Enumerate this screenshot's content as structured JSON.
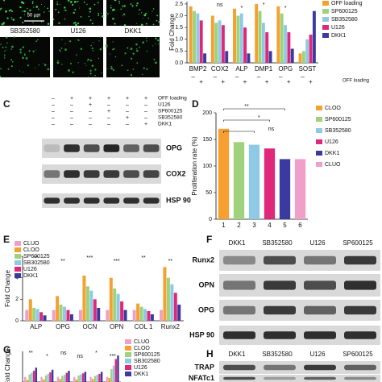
{
  "panels": [
    "C",
    "D",
    "E",
    "F",
    "G",
    "H"
  ],
  "images": {
    "labels": [
      "SB352580",
      "U126",
      "DKK1"
    ],
    "scale": "50 μm"
  },
  "blot_c": {
    "conditions": [
      {
        "name": "OFF loading",
        "signs": [
          "–",
          "+",
          "+",
          "+",
          "+",
          "+"
        ]
      },
      {
        "name": "U126",
        "signs": [
          "–",
          "–",
          "+",
          "–",
          "–",
          "–"
        ]
      },
      {
        "name": "SP600125",
        "signs": [
          "–",
          "–",
          "–",
          "+",
          "–",
          "–"
        ]
      },
      {
        "name": "SB352580",
        "signs": [
          "–",
          "–",
          "–",
          "–",
          "+",
          "–"
        ]
      },
      {
        "name": "DKK1",
        "signs": [
          "–",
          "–",
          "–",
          "–",
          "–",
          "+"
        ]
      }
    ],
    "bands": [
      "OPG",
      "COX2",
      "HSP 90"
    ]
  },
  "blot_f": {
    "columns": [
      "DKK1",
      "SB352580",
      "U126",
      "SP600125"
    ],
    "bands": [
      "Runx2",
      "OPN",
      "OPG",
      "HSP 90"
    ]
  },
  "blot_h": {
    "columns": [
      "DKK1",
      "SB352580",
      "U126",
      "SP600125"
    ],
    "bands": [
      "TRAP",
      "NFATc1"
    ]
  },
  "chart_data": [
    {
      "type": "bar",
      "ylabel": "Fold Change",
      "categories": [
        "BMP2",
        "COX2",
        "ALP",
        "DMP1",
        "OPG",
        "SOST"
      ],
      "series": [
        {
          "name": "OFF loading",
          "color": "#f5a030",
          "values": [
            2.4,
            2.0,
            2.3,
            2.5,
            2.4,
            0.4
          ]
        },
        {
          "name": "SP600125",
          "color": "#9fd27a",
          "values": [
            2.2,
            1.7,
            2.0,
            2.2,
            2.1,
            0.5
          ]
        },
        {
          "name": "SB352580",
          "color": "#8ecae6",
          "values": [
            2.1,
            1.8,
            2.1,
            1.7,
            1.6,
            1.0
          ]
        },
        {
          "name": "U126",
          "color": "#e0287a",
          "values": [
            1.8,
            1.6,
            1.5,
            1.3,
            1.3,
            1.2
          ]
        },
        {
          "name": "DKK1",
          "color": "#3a3aa0",
          "values": [
            0.4,
            0.5,
            0.4,
            0.5,
            0.6,
            2.2
          ]
        }
      ],
      "ylim": [
        0,
        2.6
      ],
      "yticks": [
        {
          "value": 0,
          "label": "0.0"
        },
        0.5,
        {
          "value": 1,
          "label": "1.0"
        },
        1.5,
        {
          "value": 2,
          "label": "2.0"
        },
        2.5
      ],
      "loading": [
        [
          "–",
          "+"
        ],
        [
          "–",
          "+"
        ],
        [
          "–",
          "+"
        ],
        [
          "–",
          "+"
        ],
        [
          "–",
          "+"
        ],
        [
          "–",
          "+"
        ]
      ],
      "loading_label": "OFF loading",
      "annotations": [
        "ns",
        "*",
        "*",
        "*"
      ]
    },
    {
      "type": "bar",
      "ylabel": "Proliferation rate (%)",
      "categories": [
        "1",
        "2",
        "3",
        "4",
        "5",
        "6"
      ],
      "values": [
        170,
        145,
        140,
        133,
        113,
        113
      ],
      "colors": [
        "#f5a030",
        "#9fd27a",
        "#8ecae6",
        "#e0287a",
        "#3a3aa0",
        "#f0a0c8"
      ],
      "legend": [
        "CLOO",
        "SP600125",
        "SB352580",
        "U126",
        "DKK1",
        "CLUO"
      ],
      "ylim": [
        0,
        200
      ],
      "yticks": [
        0,
        50,
        100,
        150,
        200
      ],
      "annotations": [
        "**",
        "*",
        "ns"
      ]
    },
    {
      "type": "bar",
      "ylabel": "Fold Change",
      "categories": [
        "ALP",
        "OPG",
        "OCN",
        "OPN",
        "COL 1",
        "Runx2"
      ],
      "series": [
        {
          "name": "CLUO",
          "color": "#f0a0c8",
          "values": [
            1.0,
            1.0,
            1.0,
            1.0,
            1.0,
            1.0
          ]
        },
        {
          "name": "CLOO",
          "color": "#f5a030",
          "values": [
            2.0,
            2.3,
            4.2,
            4.0,
            1.6,
            5.0
          ]
        },
        {
          "name": "SP600125",
          "color": "#9fd27a",
          "values": [
            1.2,
            1.5,
            3.2,
            3.0,
            1.3,
            4.0
          ]
        },
        {
          "name": "SB302580",
          "color": "#8ecae6",
          "values": [
            1.1,
            1.3,
            2.8,
            2.5,
            1.1,
            3.4
          ]
        },
        {
          "name": "U126",
          "color": "#e0287a",
          "values": [
            0.8,
            1.0,
            2.0,
            1.8,
            0.9,
            2.6
          ]
        },
        {
          "name": "DKK1",
          "color": "#3a3aa0",
          "values": [
            0.5,
            0.6,
            1.2,
            1.0,
            0.6,
            1.5
          ]
        }
      ],
      "ylim": [
        0,
        6
      ],
      "yticks": [
        0,
        2,
        4,
        6
      ],
      "annotations": [
        "**",
        "**",
        "***",
        "***",
        "**",
        "**"
      ]
    },
    {
      "type": "bar",
      "ylabel": "Fold Change",
      "categories": [
        null,
        null,
        null,
        null,
        null,
        null
      ],
      "series": [
        {
          "name": "CLUO",
          "color": "#f0a0c8",
          "values": [
            1.0,
            1.0,
            1.0,
            1.0,
            1.0,
            1.0
          ]
        },
        {
          "name": "CLOO",
          "color": "#f5a030",
          "values": [
            0.4,
            0.5,
            0.6,
            0.5,
            0.6,
            0.8
          ]
        },
        {
          "name": "SP600125",
          "color": "#9fd27a",
          "values": [
            1.5,
            1.3,
            1.2,
            1.3,
            1.2,
            2.5
          ]
        },
        {
          "name": "SB302580",
          "color": "#8ecae6",
          "values": [
            1.8,
            1.6,
            1.4,
            1.5,
            1.4,
            3.2
          ]
        },
        {
          "name": "U126",
          "color": "#e0287a",
          "values": [
            2.2,
            1.9,
            1.8,
            1.7,
            1.6,
            4.5
          ]
        },
        {
          "name": "DKK1",
          "color": "#3a3aa0",
          "values": [
            2.8,
            2.4,
            2.2,
            2.0,
            2.0,
            5.2
          ]
        }
      ],
      "ylim": [
        0,
        6
      ],
      "annotations": [
        "**",
        "*",
        "ns",
        "ns",
        "*",
        "***"
      ]
    }
  ]
}
